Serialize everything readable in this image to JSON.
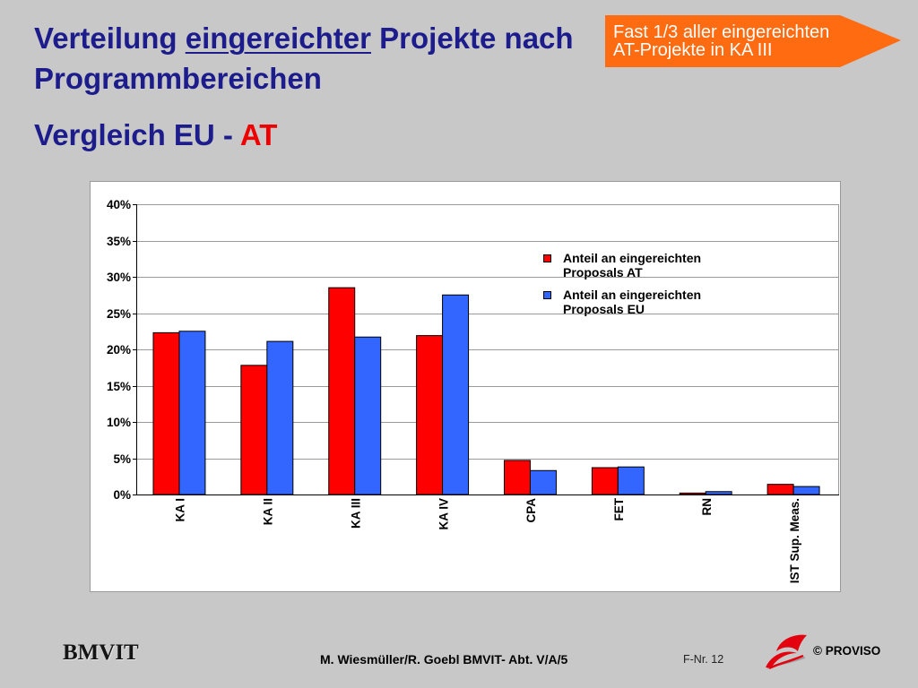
{
  "colors": {
    "background": "#c8c8c8",
    "title": "#1c1c8c",
    "highlight": "#ee0000",
    "callout": "#ff6b10",
    "callout_text": "#ffffff"
  },
  "title": {
    "line1_before": "Verteilung",
    "line1_underlined": "eingereichter",
    "line1_after": "Projekte nach",
    "line2": "Programmbereichen"
  },
  "subtitle": {
    "text": "Vergleich EU -",
    "highlight": "AT"
  },
  "callout": {
    "line1": "Fast 1/3 aller eingereichten",
    "line2": "AT-Projekte in KA III"
  },
  "footer": {
    "brand": "BMVIT",
    "authors": "M. Wiesmüller/R. Goebl BMVIT- Abt. V/A/5",
    "page_number": "F-Nr. 12",
    "logo_icon": "proviso-logo",
    "copyright": "© PROVISO"
  },
  "chart_data": {
    "type": "bar",
    "categories": [
      "KA I",
      "KA II",
      "KA III",
      "KA IV",
      "CPA",
      "FET",
      "RN",
      "IST Sup. Meas."
    ],
    "series": [
      {
        "name": "Anteil an eingereichten Proposals AT",
        "color": "#ff0000",
        "values": [
          22.3,
          17.8,
          28.5,
          21.9,
          4.7,
          3.7,
          0.2,
          1.4
        ]
      },
      {
        "name": "Anteil an eingereichten Proposals EU",
        "color": "#3366ff",
        "values": [
          22.5,
          21.1,
          21.7,
          27.5,
          3.3,
          3.8,
          0.4,
          1.1
        ]
      }
    ],
    "ylim": [
      0,
      40
    ],
    "y_tick_step": 5,
    "y_tick_labels": [
      "0%",
      "5%",
      "10%",
      "15%",
      "20%",
      "25%",
      "30%",
      "35%",
      "40%"
    ],
    "grid": true,
    "legend": "top-right"
  }
}
